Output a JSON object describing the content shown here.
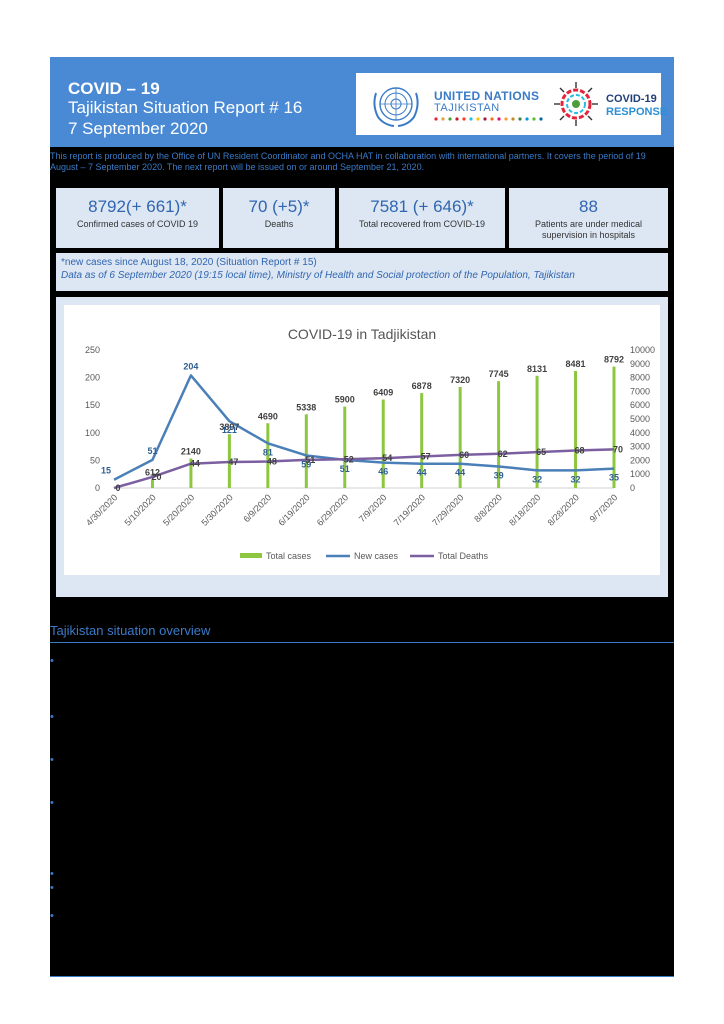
{
  "header": {
    "title": "COVID – 19",
    "subtitle": "Tajikistan Situation Report # 16",
    "date": "7 September 2020",
    "un_name": "UNITED NATIONS",
    "un_country": "TAJIKISTAN",
    "response_line1": "COVID-19",
    "response_line2": "RESPONSE"
  },
  "intro": "This report is produced by the Office of UN Resident Coordinator and OCHA HAT in collaboration with international partners. It covers the period of 19 August – 7 September 2020. The next report will be issued on or around September 21, 2020.",
  "stats": [
    {
      "value": "8792(+ 661)*",
      "label": "Confirmed cases of COVID 19"
    },
    {
      "value": "70 (+5)*",
      "label": "Deaths"
    },
    {
      "value": "7581 (+ 646)*",
      "label": "Total recovered from COVID-19"
    },
    {
      "value": "88",
      "label": "Patients are under medical supervision in hospitals"
    }
  ],
  "note": {
    "line1": "*new cases since August 18, 2020 (Situation Report # 15)",
    "line2": "Data as of 6 September 2020 (19:15 local time), Ministry of Health and Social protection of the Population, Tajikistan"
  },
  "section_title": "Tajikistan situation overview",
  "colors": {
    "accent": "#3a7bc8",
    "header_bg": "#4a8ad4",
    "panel_bg": "#dde6f3",
    "total_cases": "#8dc63f",
    "new_cases": "#4a7fb8",
    "total_deaths": "#7b5fa0"
  },
  "chart_data": {
    "type": "bar",
    "title": "COVID-19 in Tadjikistan",
    "categories": [
      "4/30/2020",
      "5/10/2020",
      "5/20/2020",
      "5/30/2020",
      "6/9/2020",
      "6/19/2020",
      "6/29/2020",
      "7/9/2020",
      "7/19/2020",
      "7/29/2020",
      "8/8/2020",
      "8/18/2020",
      "8/28/2020",
      "9/7/2020"
    ],
    "series": [
      {
        "name": "Total cases",
        "type": "bar",
        "axis": "right",
        "values": [
          15,
          612,
          2140,
          3897,
          4690,
          5338,
          5900,
          6409,
          6878,
          7320,
          7745,
          8131,
          8481,
          8792
        ],
        "labels": [
          "",
          "612",
          "2140",
          "3897",
          "4690",
          "5338",
          "5900",
          "6409",
          "6878",
          "7320",
          "7745",
          "8131",
          "8481",
          "8792"
        ]
      },
      {
        "name": "New cases",
        "type": "line",
        "axis": "left",
        "values": [
          15,
          51,
          204,
          121,
          81,
          59,
          51,
          46,
          44,
          44,
          39,
          32,
          32,
          35
        ]
      },
      {
        "name": "Total Deaths",
        "type": "line",
        "axis": "left",
        "values": [
          0,
          20,
          44,
          47,
          48,
          51,
          52,
          54,
          57,
          60,
          62,
          65,
          68,
          70
        ]
      }
    ],
    "ylim_left": [
      0,
      250
    ],
    "yticks_left": [
      "0",
      "50",
      "100",
      "150",
      "200",
      "250"
    ],
    "ylim_right": [
      0,
      10000
    ],
    "yticks_right": [
      "0",
      "1000",
      "2000",
      "3000",
      "4000",
      "5000",
      "6000",
      "7000",
      "8000",
      "9000",
      "10000"
    ],
    "legend_position": "bottom",
    "grid": false
  }
}
